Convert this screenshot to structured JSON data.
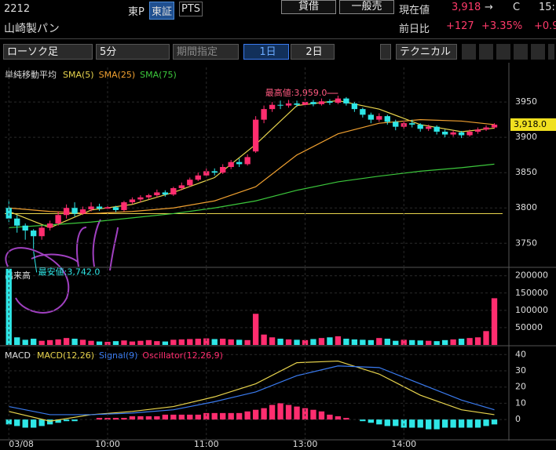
{
  "header": {
    "code": "2212",
    "market": "東P",
    "exchange": "東証",
    "pts": "PTS",
    "name": "山崎製パン",
    "btn_lend": "貸借",
    "btn_general": "一般売",
    "price_label": "現在値",
    "price": "3,918",
    "arrow": "→",
    "flag": "C",
    "time": "15:",
    "change_label": "前日比",
    "change": "+127",
    "change_pct": "+3.35%",
    "other": "+0.9"
  },
  "toolbar": {
    "chart_kind": "ローソク足",
    "interval": "5分",
    "period": "期間指定",
    "day1": "1日",
    "day2": "2日",
    "technical": "テクニカル"
  },
  "chart_data": [
    {
      "type": "candlestick",
      "title": "単純移動平均",
      "xlim": [
        -0.5,
        60
      ],
      "ylim": [
        3717,
        3999
      ],
      "yticks": [
        3750,
        3800,
        3850,
        3900,
        3950
      ],
      "grid": true,
      "up_color": "#ff2d6f",
      "down_color": "#2ee6e6",
      "candles": [
        [
          3800,
          3812,
          3780,
          3785
        ],
        [
          3785,
          3790,
          3765,
          3775
        ],
        [
          3775,
          3778,
          3755,
          3768
        ],
        [
          3768,
          3770,
          3742,
          3760
        ],
        [
          3760,
          3775,
          3755,
          3772
        ],
        [
          3772,
          3782,
          3768,
          3778
        ],
        [
          3778,
          3795,
          3775,
          3790
        ],
        [
          3790,
          3805,
          3785,
          3800
        ],
        [
          3800,
          3808,
          3788,
          3792
        ],
        [
          3792,
          3802,
          3790,
          3798
        ],
        [
          3798,
          3808,
          3795,
          3802
        ],
        [
          3802,
          3806,
          3796,
          3799
        ],
        [
          3799,
          3804,
          3797,
          3801
        ],
        [
          3801,
          3803,
          3794,
          3797
        ],
        [
          3797,
          3810,
          3795,
          3808
        ],
        [
          3808,
          3815,
          3805,
          3812
        ],
        [
          3812,
          3818,
          3808,
          3815
        ],
        [
          3815,
          3820,
          3812,
          3818
        ],
        [
          3818,
          3826,
          3815,
          3822
        ],
        [
          3822,
          3825,
          3816,
          3819
        ],
        [
          3819,
          3830,
          3817,
          3828
        ],
        [
          3828,
          3836,
          3825,
          3832
        ],
        [
          3832,
          3843,
          3830,
          3840
        ],
        [
          3840,
          3850,
          3838,
          3846
        ],
        [
          3846,
          3856,
          3844,
          3852
        ],
        [
          3852,
          3856,
          3846,
          3850
        ],
        [
          3850,
          3862,
          3848,
          3858
        ],
        [
          3858,
          3868,
          3855,
          3865
        ],
        [
          3865,
          3870,
          3858,
          3862
        ],
        [
          3862,
          3876,
          3860,
          3872
        ],
        [
          3880,
          3930,
          3878,
          3925
        ],
        [
          3925,
          3945,
          3920,
          3940
        ],
        [
          3940,
          3950,
          3936,
          3946
        ],
        [
          3946,
          3952,
          3940,
          3945
        ],
        [
          3945,
          3953,
          3942,
          3948
        ],
        [
          3948,
          3952,
          3943,
          3946
        ],
        [
          3946,
          3955,
          3944,
          3950
        ],
        [
          3950,
          3953,
          3944,
          3947
        ],
        [
          3947,
          3955,
          3945,
          3951
        ],
        [
          3951,
          3954,
          3946,
          3949
        ],
        [
          3949,
          3959,
          3947,
          3955
        ],
        [
          3955,
          3957,
          3945,
          3948
        ],
        [
          3948,
          3950,
          3936,
          3940
        ],
        [
          3940,
          3942,
          3928,
          3932
        ],
        [
          3932,
          3935,
          3920,
          3925
        ],
        [
          3925,
          3934,
          3922,
          3930
        ],
        [
          3930,
          3932,
          3918,
          3922
        ],
        [
          3922,
          3925,
          3910,
          3915
        ],
        [
          3915,
          3924,
          3912,
          3920
        ],
        [
          3920,
          3925,
          3914,
          3918
        ],
        [
          3918,
          3920,
          3908,
          3912
        ],
        [
          3912,
          3918,
          3909,
          3915
        ],
        [
          3915,
          3917,
          3904,
          3908
        ],
        [
          3908,
          3911,
          3900,
          3904
        ],
        [
          3904,
          3910,
          3901,
          3907
        ],
        [
          3907,
          3909,
          3899,
          3903
        ],
        [
          3903,
          3911,
          3901,
          3908
        ],
        [
          3908,
          3914,
          3905,
          3911
        ],
        [
          3911,
          3917,
          3909,
          3914
        ],
        [
          3914,
          3920,
          3912,
          3918
        ]
      ],
      "series": [
        {
          "name": "SMA(5)",
          "color": "#e8d44d",
          "x": [
            0,
            5,
            10,
            15,
            20,
            25,
            30,
            35,
            40,
            45,
            50,
            55,
            59
          ],
          "values": [
            3795,
            3772,
            3797,
            3805,
            3822,
            3843,
            3890,
            3945,
            3952,
            3940,
            3918,
            3908,
            3913
          ]
        },
        {
          "name": "SMA(25)",
          "color": "#f0a030",
          "x": [
            0,
            5,
            10,
            15,
            20,
            25,
            30,
            35,
            40,
            45,
            50,
            55,
            59
          ],
          "values": [
            3800,
            3795,
            3792,
            3795,
            3800,
            3810,
            3830,
            3875,
            3905,
            3920,
            3925,
            3923,
            3918
          ]
        },
        {
          "name": "SMA(75)",
          "color": "#3cc83c",
          "x": [
            0,
            5,
            10,
            15,
            20,
            25,
            30,
            35,
            40,
            45,
            50,
            55,
            59
          ],
          "values": [
            3772,
            3776,
            3780,
            3786,
            3792,
            3800,
            3810,
            3825,
            3837,
            3845,
            3852,
            3857,
            3862
          ]
        }
      ],
      "reference_line": 3792,
      "last_price": {
        "value": 3918,
        "label": "3,918.0"
      },
      "annotations": [
        {
          "text": "最高値:3,959.0",
          "value": 3959,
          "x": 40
        },
        {
          "text": "最安値:3,742.0",
          "value": 3742,
          "x": 3
        }
      ]
    },
    {
      "type": "volume",
      "title": "出来高",
      "xlim": [
        -0.5,
        60
      ],
      "ylim": [
        0,
        222000
      ],
      "yticks": [
        50000,
        100000,
        150000,
        200000
      ],
      "grid": true,
      "values": [
        220000,
        22000,
        15000,
        18000,
        12000,
        14000,
        16000,
        20000,
        18000,
        15000,
        12000,
        10000,
        9000,
        11000,
        13000,
        10000,
        12000,
        14000,
        11000,
        10000,
        15000,
        16000,
        17000,
        18000,
        19000,
        17000,
        18000,
        16000,
        15000,
        14000,
        90000,
        30000,
        22000,
        18000,
        16000,
        15000,
        14000,
        17000,
        20000,
        22000,
        25000,
        18000,
        16000,
        15000,
        14000,
        20000,
        18000,
        12000,
        15000,
        14000,
        13000,
        12000,
        11000,
        14000,
        16000,
        18000,
        20000,
        22000,
        40000,
        135000
      ]
    },
    {
      "type": "macd",
      "title": "MACD",
      "xlim": [
        -0.5,
        60
      ],
      "ylim": [
        -12,
        44
      ],
      "yticks": [
        0,
        10,
        20,
        30,
        40
      ],
      "grid": true,
      "xticks": [
        {
          "value": 0,
          "label": "03/08"
        },
        {
          "value": 12,
          "label": "10:00"
        },
        {
          "value": 24,
          "label": "11:00"
        },
        {
          "value": 36,
          "label": "13:00"
        },
        {
          "value": 48,
          "label": "14:00"
        }
      ],
      "series": [
        {
          "name": "MACD(12,26)",
          "color": "#e8d44d",
          "x": [
            0,
            5,
            10,
            15,
            20,
            25,
            30,
            35,
            40,
            45,
            50,
            55,
            59
          ],
          "values": [
            5,
            -1,
            3,
            5,
            8,
            14,
            22,
            35,
            36,
            28,
            15,
            6,
            3
          ]
        },
        {
          "name": "Signal(9)",
          "color": "#3a7bf0",
          "x": [
            0,
            5,
            10,
            15,
            20,
            25,
            30,
            35,
            40,
            45,
            50,
            55,
            59
          ],
          "values": [
            8,
            3,
            3,
            4,
            6,
            11,
            17,
            27,
            33,
            32,
            22,
            12,
            6
          ]
        },
        {
          "name": "Oscillator(12,26,9)",
          "color": "#ff2d6f",
          "neg_color": "#2ee6e6",
          "values": [
            -3,
            -4,
            -5,
            -5,
            -4,
            -3,
            -2,
            -1,
            -1,
            0,
            0,
            1,
            1,
            1,
            1,
            2,
            2,
            2,
            2,
            3,
            3,
            3,
            3,
            3,
            4,
            4,
            4,
            4,
            4,
            5,
            6,
            7,
            9,
            10,
            9,
            8,
            7,
            6,
            5,
            3,
            2,
            1,
            0,
            -1,
            -2,
            -3,
            -4,
            -4,
            -5,
            -5,
            -5,
            -6,
            -6,
            -5,
            -5,
            -5,
            -5,
            -5,
            -4,
            -3
          ]
        }
      ]
    }
  ]
}
